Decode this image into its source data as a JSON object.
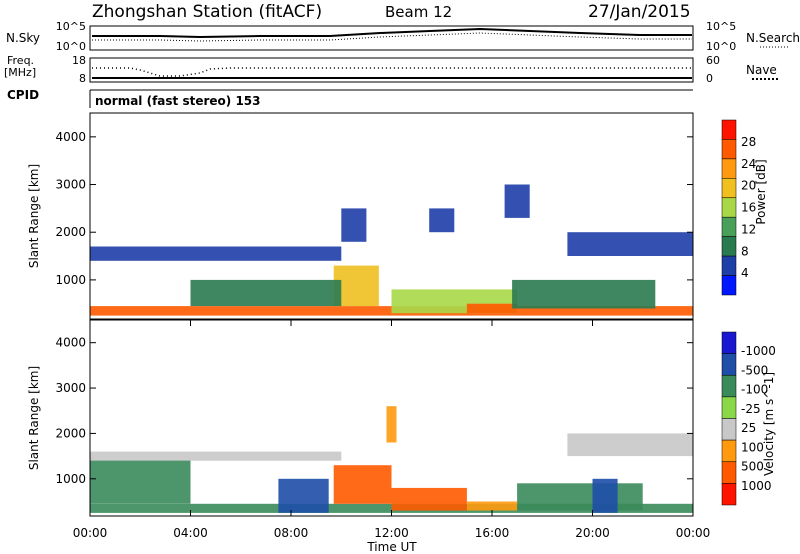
{
  "header": {
    "title": "Zhongshan Station (fitACF)",
    "beam": "Beam 12",
    "date": "27/Jan/2015"
  },
  "noise_panel": {
    "left_label": "N.Sky",
    "right_label": "N.Search",
    "left_ticks": [
      "10^5",
      "10^0"
    ],
    "right_ticks": [
      "10^5",
      "10^0"
    ]
  },
  "freq_panel": {
    "left_label_top": "Freq.",
    "left_label_unit": "[MHz]",
    "right_label": "Nave",
    "left_ticks": [
      "18",
      "8"
    ],
    "right_ticks": [
      "60",
      "0"
    ]
  },
  "cpid": {
    "label": "CPID",
    "value": "normal (fast stereo) 153"
  },
  "x_axis": {
    "label": "Time UT",
    "ticks": [
      "00:00",
      "04:00",
      "08:00",
      "12:00",
      "16:00",
      "20:00",
      "00:00"
    ]
  },
  "colors": {
    "power": [
      "#0018ff",
      "#1e3ea8",
      "#2a7a50",
      "#4aa058",
      "#a8d848",
      "#f0c020",
      "#ff9a10",
      "#ff5a00",
      "#ff1400"
    ],
    "velocity": [
      "#ff1400",
      "#ff5a00",
      "#ff9a10",
      "#c8c8c8",
      "#8ad848",
      "#3a8a5a",
      "#1e4ea8",
      "#1818d0"
    ]
  },
  "chart_data": [
    {
      "type": "heatmap",
      "title": "",
      "xlabel": "Time UT",
      "ylabel": "Slant Range [km]",
      "y_ticks": [
        "1000",
        "2000",
        "3000",
        "4000"
      ],
      "ylim": [
        180,
        4500
      ],
      "xlim": [
        "00:00",
        "24:00"
      ],
      "colorbar": {
        "label": "Power [dB]",
        "ticks": [
          "4",
          "8",
          "12",
          "16",
          "20",
          "24",
          "28"
        ]
      },
      "regions": [
        {
          "t0": 0.0,
          "t1": 24.0,
          "r0": 250,
          "r1": 450,
          "value": 26
        },
        {
          "t0": 0.0,
          "t1": 10.0,
          "r0": 1400,
          "r1": 1700,
          "value": 7
        },
        {
          "t0": 19.0,
          "t1": 24.0,
          "r0": 1500,
          "r1": 2000,
          "value": 8
        },
        {
          "t0": 9.7,
          "t1": 11.5,
          "r0": 450,
          "r1": 1300,
          "value": 19
        },
        {
          "t0": 4.0,
          "t1": 10.0,
          "r0": 450,
          "r1": 1000,
          "value": 11
        },
        {
          "t0": 12.0,
          "t1": 17.0,
          "r0": 300,
          "r1": 800,
          "value": 15
        },
        {
          "t0": 15.0,
          "t1": 17.0,
          "r0": 300,
          "r1": 500,
          "value": 24
        },
        {
          "t0": 16.8,
          "t1": 22.5,
          "r0": 400,
          "r1": 1000,
          "value": 11
        },
        {
          "t0": 10.0,
          "t1": 11.0,
          "r0": 1800,
          "r1": 2500,
          "value": 6
        },
        {
          "t0": 13.5,
          "t1": 14.5,
          "r0": 2000,
          "r1": 2500,
          "value": 6
        },
        {
          "t0": 16.5,
          "t1": 17.5,
          "r0": 2300,
          "r1": 3000,
          "value": 8
        }
      ]
    },
    {
      "type": "heatmap",
      "title": "",
      "xlabel": "Time UT",
      "ylabel": "Slant Range [km]",
      "y_ticks": [
        "1000",
        "2000",
        "3000",
        "4000"
      ],
      "ylim": [
        180,
        4500
      ],
      "xlim": [
        "00:00",
        "24:00"
      ],
      "colorbar": {
        "label": "Velocity [m s^-1]",
        "ticks": [
          "1000",
          "500",
          "100",
          "25",
          "-25",
          "-100",
          "-500",
          "-1000"
        ]
      },
      "regions": [
        {
          "t0": 0.0,
          "t1": 24.0,
          "r0": 250,
          "r1": 450,
          "value": 200
        },
        {
          "t0": 0.0,
          "t1": 10.0,
          "r0": 1400,
          "r1": 1600,
          "value": 0
        },
        {
          "t0": 19.0,
          "t1": 24.0,
          "r0": 1500,
          "r1": 2000,
          "value": 0
        },
        {
          "t0": 9.7,
          "t1": 12.0,
          "r0": 450,
          "r1": 1300,
          "value": -400
        },
        {
          "t0": 12.0,
          "t1": 15.0,
          "r0": 300,
          "r1": 800,
          "value": -150
        },
        {
          "t0": 15.0,
          "t1": 17.0,
          "r0": 300,
          "r1": 500,
          "value": -80
        },
        {
          "t0": 7.5,
          "t1": 9.5,
          "r0": 250,
          "r1": 1000,
          "value": 800
        },
        {
          "t0": 17.0,
          "t1": 22.0,
          "r0": 300,
          "r1": 900,
          "value": 300
        },
        {
          "t0": 20.0,
          "t1": 21.0,
          "r0": 250,
          "r1": 1000,
          "value": 900
        },
        {
          "t0": 0.0,
          "t1": 4.0,
          "r0": 450,
          "r1": 1400,
          "value": 300
        },
        {
          "t0": 11.8,
          "t1": 12.2,
          "r0": 1800,
          "r1": 2600,
          "value": -80
        }
      ]
    }
  ]
}
